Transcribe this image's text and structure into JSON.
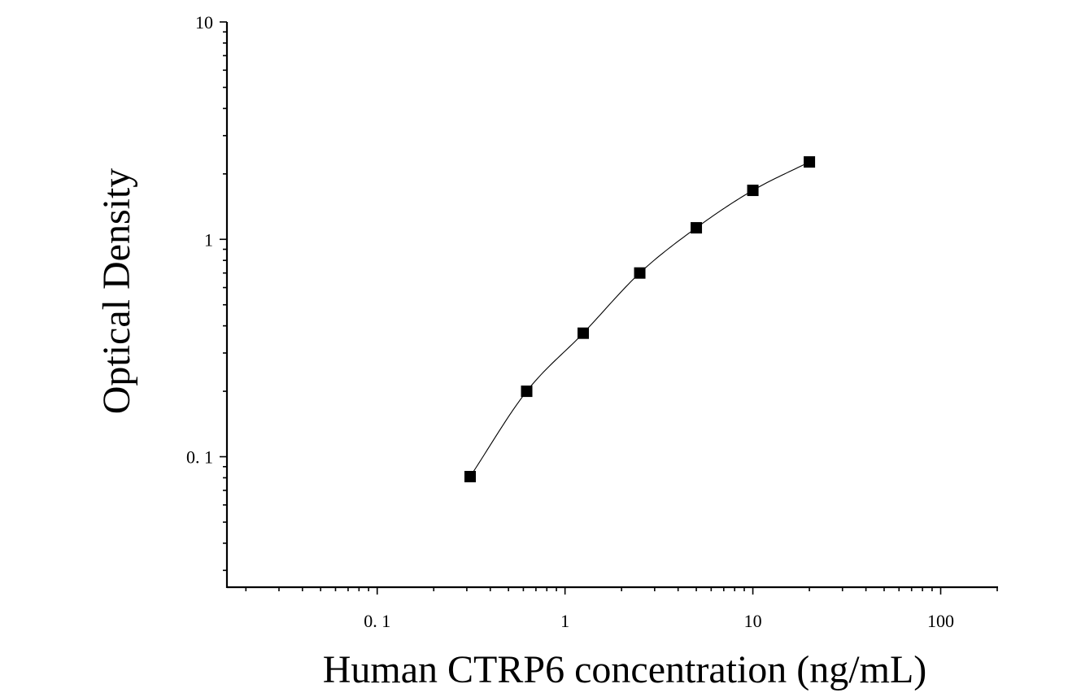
{
  "chart_data": {
    "type": "scatter",
    "title": "",
    "xlabel": "Human CTRP6 concentration (ng/mL)",
    "ylabel": "Optical Density",
    "x_scale": "log",
    "y_scale": "log",
    "xlim": [
      0.01585,
      200
    ],
    "ylim": [
      0.0251,
      10
    ],
    "x_ticks": [
      {
        "value": 0.1,
        "label": "0. 1"
      },
      {
        "value": 1,
        "label": "1"
      },
      {
        "value": 10,
        "label": "10"
      },
      {
        "value": 100,
        "label": "100"
      }
    ],
    "y_ticks": [
      {
        "value": 0.1,
        "label": "0. 1"
      },
      {
        "value": 1,
        "label": "1"
      },
      {
        "value": 10,
        "label": "10"
      }
    ],
    "grid": false,
    "legend": "none",
    "series": [
      {
        "x": [
          0.3125,
          0.625,
          1.25,
          2.5,
          5,
          10,
          20
        ],
        "y": [
          0.081,
          0.2,
          0.37,
          0.7,
          1.13,
          1.68,
          2.27
        ],
        "marker": "square",
        "color": "#000000",
        "fit_line": true
      }
    ]
  }
}
